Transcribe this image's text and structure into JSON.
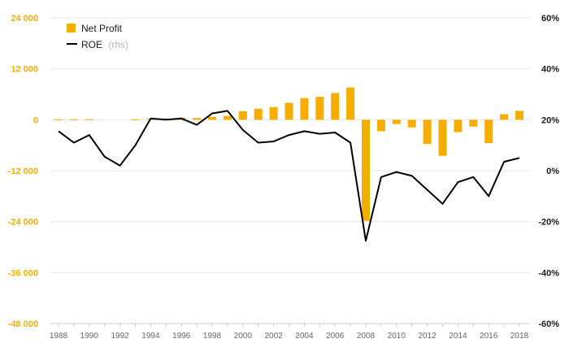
{
  "colors": {
    "bar": "#f5ae00",
    "line": "#000000",
    "grid": "#e6e6e6",
    "left_axis_label": "#f5ae00",
    "right_axis_label": "#1a1a1a"
  },
  "legend": {
    "placement": "top-left",
    "items": [
      {
        "label": "Net Profit",
        "suffix": "",
        "marker": "square"
      },
      {
        "label": "ROE",
        "suffix": "(rhs)",
        "marker": "line"
      }
    ]
  },
  "chart_data": {
    "type": "bar",
    "title": "",
    "xlabel": "",
    "ylabel": "",
    "grid": true,
    "x": [
      1988,
      1989,
      1990,
      1991,
      1992,
      1993,
      1994,
      1995,
      1996,
      1997,
      1998,
      1999,
      2000,
      2001,
      2002,
      2003,
      2004,
      2005,
      2006,
      2007,
      2008,
      2009,
      2010,
      2011,
      2012,
      2013,
      2014,
      2015,
      2016,
      2017,
      2018
    ],
    "x_tick_labels": [
      "1988",
      "1990",
      "1992",
      "1994",
      "1996",
      "1998",
      "2000",
      "2002",
      "2004",
      "2006",
      "2008",
      "2010",
      "2012",
      "2014",
      "2016",
      "2018"
    ],
    "y_left": {
      "lim": [
        -48000,
        24000
      ],
      "ticks": [
        24000,
        12000,
        0,
        -12000,
        -24000,
        -36000,
        -48000
      ],
      "tick_labels": [
        "24 000",
        "12 000",
        "0",
        "-12 000",
        "-24 000",
        "-36 000",
        "-48 000"
      ]
    },
    "y_right": {
      "lim": [
        -60,
        60
      ],
      "ticks": [
        60,
        40,
        20,
        0,
        -20,
        -40,
        -60
      ],
      "tick_labels": [
        "60%",
        "40%",
        "20%",
        "0%",
        "-20%",
        "-40%",
        "-60%"
      ]
    },
    "series": [
      {
        "name": "Net Profit",
        "type": "bar",
        "axis": "left",
        "values": [
          100,
          100,
          100,
          0,
          0,
          100,
          200,
          300,
          500,
          400,
          700,
          900,
          2000,
          2600,
          3000,
          4000,
          5100,
          5400,
          6300,
          7600,
          -23800,
          -2700,
          -1000,
          -1800,
          -5700,
          -8500,
          -2900,
          -1600,
          -5500,
          1300,
          2100
        ]
      },
      {
        "name": "ROE",
        "type": "line",
        "axis": "right",
        "values": [
          15.5,
          11,
          14,
          5.5,
          2,
          10,
          20.5,
          20,
          20.5,
          18,
          22.5,
          23.5,
          16,
          11,
          11.5,
          14,
          15.5,
          14.5,
          15,
          11,
          -27.5,
          -2.5,
          -0.5,
          -2,
          -7.5,
          -13,
          -4.5,
          -2.5,
          -10,
          3.5,
          5
        ]
      }
    ]
  }
}
